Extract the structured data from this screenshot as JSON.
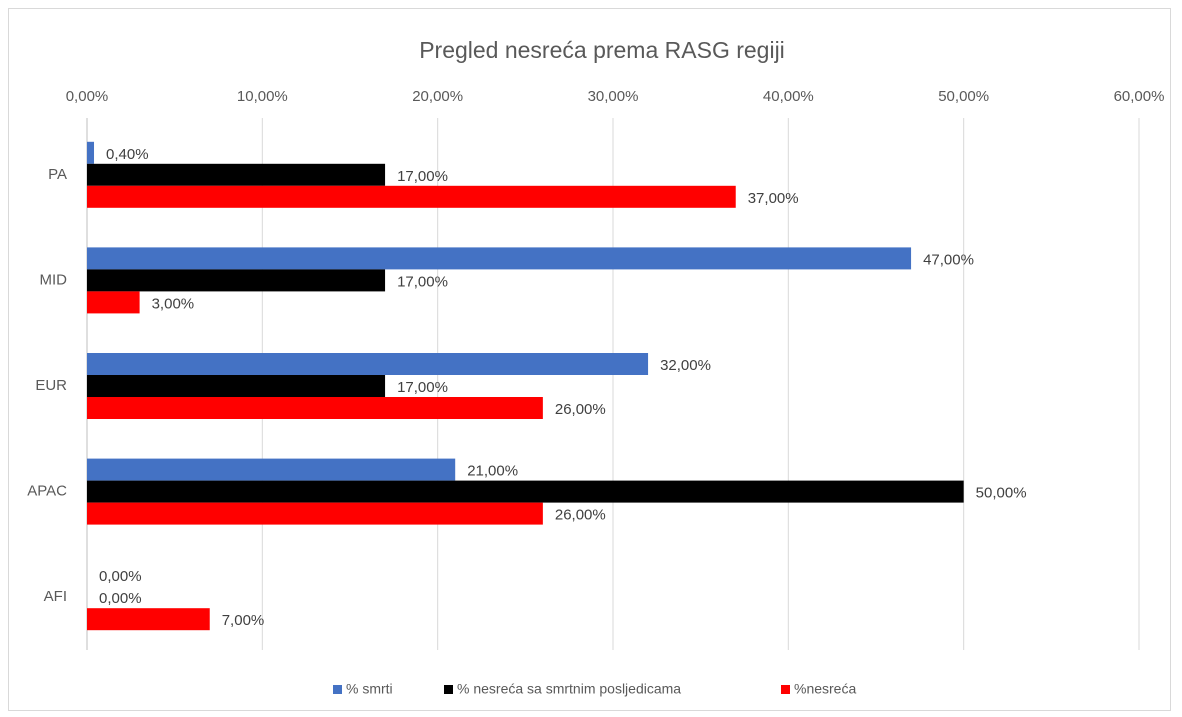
{
  "chart_data": {
    "type": "hbar",
    "title": "Pregled nesreća prema RASG regiji",
    "categories": [
      "PA",
      "MID",
      "EUR",
      "APAC",
      "AFI"
    ],
    "series": [
      {
        "name": "% smrti",
        "color": "#4472c4",
        "values": [
          0.4,
          47,
          32,
          21,
          0
        ],
        "value_labels": [
          "0,40%",
          "47,00%",
          "32,00%",
          "21,00%",
          "0,00%"
        ]
      },
      {
        "name": "% nesreća sa smrtnim posljedicama",
        "color": "#000000",
        "values": [
          17,
          17,
          17,
          50,
          0
        ],
        "value_labels": [
          "17,00%",
          "17,00%",
          "17,00%",
          "50,00%",
          "0,00%"
        ]
      },
      {
        "name": "%nesreća",
        "color": "#ff0000",
        "values": [
          37,
          3,
          26,
          26,
          7
        ],
        "value_labels": [
          "37,00%",
          "3,00%",
          "26,00%",
          "26,00%",
          "7,00%"
        ]
      }
    ],
    "xlim": [
      0,
      60
    ],
    "xticks": [
      {
        "value": 0,
        "label": "0,00%"
      },
      {
        "value": 10,
        "label": "10,00%"
      },
      {
        "value": 20,
        "label": "20,00%"
      },
      {
        "value": 30,
        "label": "30,00%"
      },
      {
        "value": 40,
        "label": "40,00%"
      },
      {
        "value": 50,
        "label": "50,00%"
      },
      {
        "value": 60,
        "label": "60,00%"
      }
    ],
    "grid": true,
    "legend": "bottom"
  }
}
